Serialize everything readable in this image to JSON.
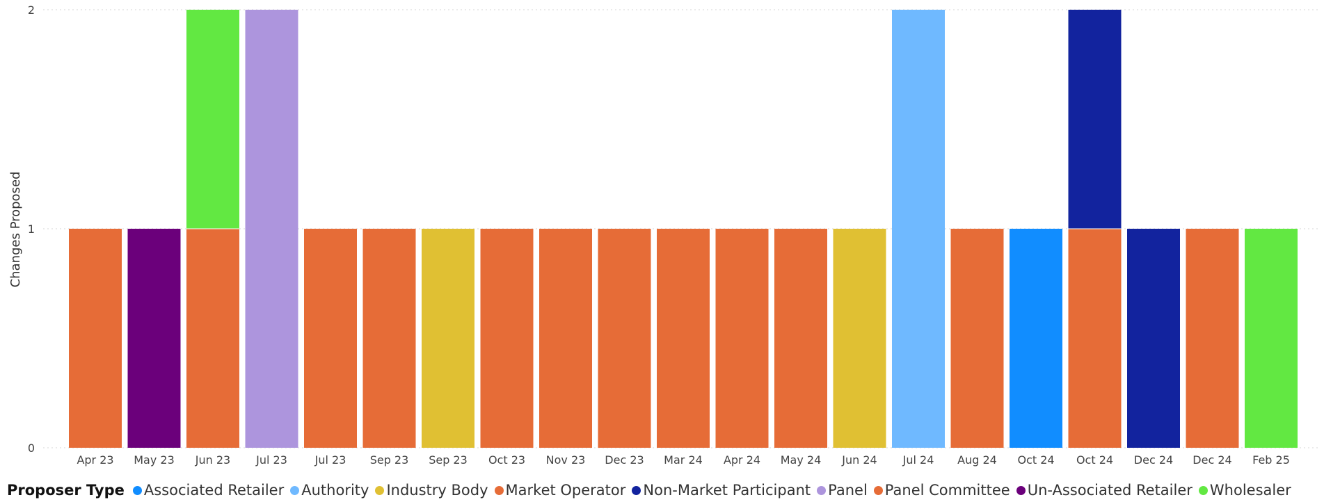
{
  "chart_data": {
    "type": "bar",
    "stacked": true,
    "ylabel": "Changes Proposed",
    "xlabel": "",
    "ylim": [
      0,
      2
    ],
    "yticks": [
      "0",
      "1",
      "2"
    ],
    "grid": true,
    "legend_position": "bottom",
    "categories": [
      "Apr 23",
      "May 23",
      "Jun 23",
      "Jul 23",
      "Jul 23",
      "Sep 23",
      "Sep 23",
      "Oct 23",
      "Nov 23",
      "Dec 23",
      "Mar 24",
      "Apr 24",
      "May 24",
      "Jun 24",
      "Jul 24",
      "Aug 24",
      "Oct 24",
      "Oct 24",
      "Dec 24",
      "Dec 24",
      "Feb 25"
    ],
    "series": [
      {
        "name": "Associated Retailer",
        "color": "#118DFF",
        "values": [
          0,
          0,
          0,
          0,
          0,
          0,
          0,
          0,
          0,
          0,
          0,
          0,
          0,
          0,
          0,
          0,
          1,
          0,
          0,
          0,
          0
        ]
      },
      {
        "name": "Authority",
        "color": "#6FB9FF",
        "values": [
          0,
          0,
          0,
          0,
          0,
          0,
          0,
          0,
          0,
          0,
          0,
          0,
          0,
          0,
          2,
          0,
          0,
          0,
          0,
          0,
          0
        ]
      },
      {
        "name": "Industry Body",
        "color": "#E0C033",
        "values": [
          0,
          0,
          0,
          0,
          0,
          0,
          1,
          0,
          0,
          0,
          0,
          0,
          0,
          1,
          0,
          0,
          0,
          0,
          0,
          0,
          0
        ]
      },
      {
        "name": "Market Operator",
        "color": "#E66C37",
        "values": [
          1,
          0,
          1,
          0,
          1,
          1,
          0,
          1,
          1,
          1,
          1,
          1,
          1,
          0,
          0,
          1,
          0,
          1,
          0,
          1,
          0
        ]
      },
      {
        "name": "Non-Market Participant",
        "color": "#12239E",
        "values": [
          0,
          0,
          0,
          0,
          0,
          0,
          0,
          0,
          0,
          0,
          0,
          0,
          0,
          0,
          0,
          0,
          0,
          1,
          1,
          0,
          0
        ]
      },
      {
        "name": "Panel",
        "color": "#AD95DD",
        "values": [
          0,
          0,
          0,
          2,
          0,
          0,
          0,
          0,
          0,
          0,
          0,
          0,
          0,
          0,
          0,
          0,
          0,
          0,
          0,
          0,
          0
        ]
      },
      {
        "name": "Panel Committee",
        "color": "#E66C37",
        "values": [
          0,
          0,
          0,
          0,
          0,
          0,
          0,
          0,
          0,
          0,
          0,
          0,
          0,
          0,
          0,
          0,
          0,
          0,
          0,
          0,
          0
        ]
      },
      {
        "name": "Un-Associated Retailer",
        "color": "#6B007B",
        "values": [
          0,
          1,
          0,
          0,
          0,
          0,
          0,
          0,
          0,
          0,
          0,
          0,
          0,
          0,
          0,
          0,
          0,
          0,
          0,
          0,
          0
        ]
      },
      {
        "name": "Wholesaler",
        "color": "#62E842",
        "values": [
          0,
          0,
          1,
          0,
          0,
          0,
          0,
          0,
          0,
          0,
          0,
          0,
          0,
          0,
          0,
          0,
          0,
          0,
          0,
          0,
          1
        ]
      }
    ]
  },
  "legend": {
    "title": "Proposer Type",
    "items": [
      {
        "label": "Associated Retailer",
        "color": "#118DFF",
        "icon": "circle"
      },
      {
        "label": "Authority",
        "color": "#6FB9FF",
        "icon": "circle"
      },
      {
        "label": "Industry Body",
        "color": "#E0C033",
        "icon": "circle"
      },
      {
        "label": "Market Operator",
        "color": "#E66C37",
        "icon": "circle"
      },
      {
        "label": "Non-Market Participant",
        "color": "#12239E",
        "icon": "circle"
      },
      {
        "label": "Panel",
        "color": "#AD95DD",
        "icon": "circle"
      },
      {
        "label": "Panel Committee",
        "color": "#E66C37",
        "icon": "circle"
      },
      {
        "label": "Un-Associated Retailer",
        "color": "#6B007B",
        "icon": "circle"
      },
      {
        "label": "Wholesaler",
        "color": "#62E842",
        "icon": "circle"
      }
    ]
  }
}
